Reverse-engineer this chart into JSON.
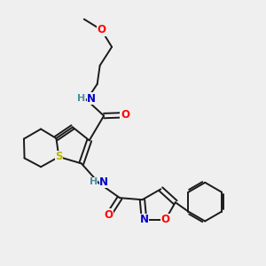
{
  "bg_color": "#efefef",
  "atom_colors": {
    "C": "#1a1a1a",
    "N": "#0000cd",
    "O": "#ff0000",
    "S": "#b8b800",
    "H": "#4a8fa0"
  },
  "bond_color": "#1a1a1a",
  "bond_lw": 1.4,
  "font_size": 8.5,
  "xlim": [
    0,
    10
  ],
  "ylim": [
    0,
    10
  ]
}
